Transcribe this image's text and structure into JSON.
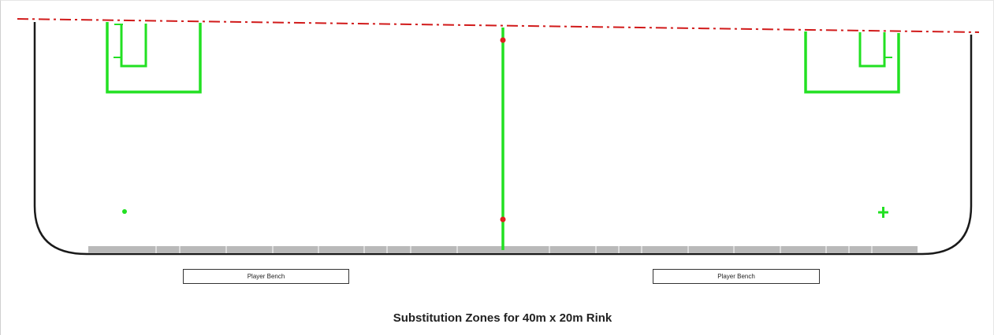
{
  "diagram": {
    "title": "Substitution Zones for 40m x 20m Rink",
    "benches": [
      {
        "label": "Player Bench"
      },
      {
        "label": "Player Bench"
      }
    ],
    "colors": {
      "boards": "#1a1a1a",
      "lines": "#22e022",
      "faceoff_dots": "#e02020",
      "center_line_dashed": "#d11a1a",
      "substitution_zone": "#b9b9b9"
    }
  }
}
